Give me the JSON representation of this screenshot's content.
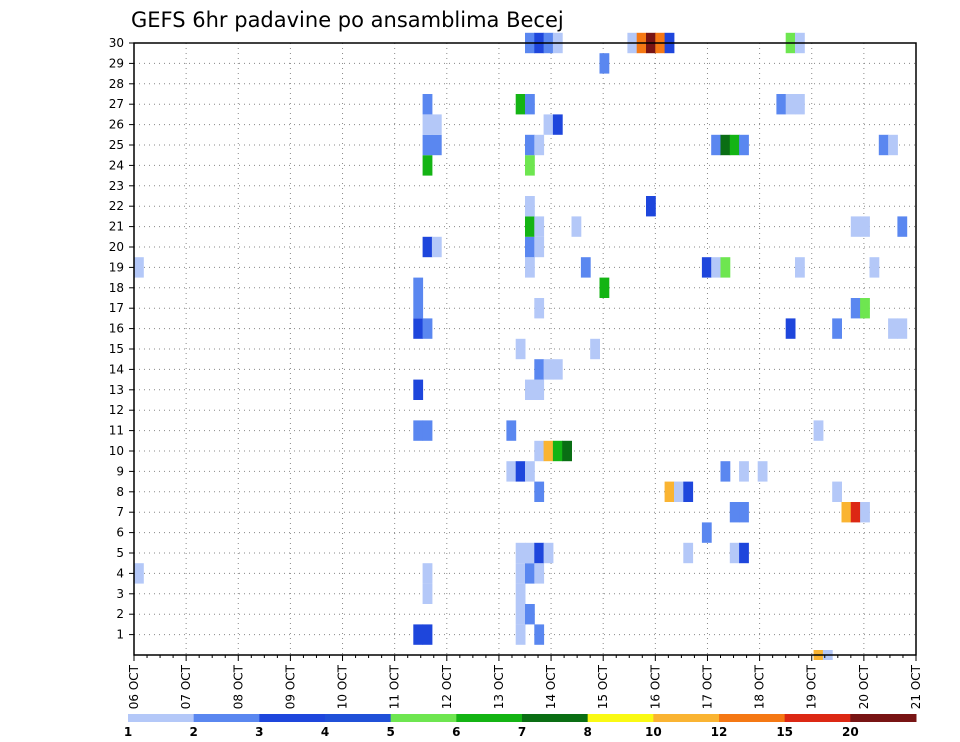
{
  "chart_data": {
    "type": "heatmap",
    "title": "GEFS 6hr padavine po ansamblima Becej",
    "x_tick_labels": [
      "06 OCT",
      "07 OCT",
      "08 OCT",
      "09 OCT",
      "10 OCT",
      "11 OCT",
      "12 OCT",
      "13 OCT",
      "14 OCT",
      "15 OCT",
      "16 OCT",
      "17 OCT",
      "18 OCT",
      "19 OCT",
      "20 OCT",
      "21 OCT"
    ],
    "x_range_days": [
      0,
      15
    ],
    "y_tick_labels": [
      "1",
      "2",
      "3",
      "4",
      "5",
      "6",
      "7",
      "8",
      "9",
      "10",
      "11",
      "12",
      "13",
      "14",
      "15",
      "16",
      "17",
      "18",
      "19",
      "20",
      "21",
      "22",
      "23",
      "24",
      "25",
      "26",
      "27",
      "28",
      "29",
      "30"
    ],
    "y_range": [
      0,
      30
    ],
    "grid": true,
    "legend_position": "bottom",
    "legend": {
      "labels": [
        "1",
        "2",
        "3",
        "4",
        "5",
        "6",
        "7",
        "8",
        "10",
        "12",
        "15",
        "20"
      ],
      "colors": [
        "#b4c8f8",
        "#5a87f0",
        "#1e46dc",
        "#2050d8",
        "#6ee650",
        "#14b414",
        "#0a6e14",
        "#fafa14",
        "#fab432",
        "#f57814",
        "#dc2814",
        "#781414"
      ]
    },
    "cells_note_units": "x = 6-hour step index from 06 OCT 00Z, y = member number, v = precipitation class",
    "cells": [
      {
        "x": 1,
        "y": 4,
        "v": 1
      },
      {
        "x": 1,
        "y": 19,
        "v": 1
      },
      {
        "x": 31,
        "y": 1,
        "v": 3
      },
      {
        "x": 32,
        "y": 1,
        "v": 3
      },
      {
        "x": 31,
        "y": 11,
        "v": 2
      },
      {
        "x": 32,
        "y": 11,
        "v": 2
      },
      {
        "x": 31,
        "y": 13,
        "v": 3
      },
      {
        "x": 31,
        "y": 16,
        "v": 3
      },
      {
        "x": 32,
        "y": 16,
        "v": 2
      },
      {
        "x": 31,
        "y": 17,
        "v": 2
      },
      {
        "x": 31,
        "y": 18,
        "v": 2
      },
      {
        "x": 32,
        "y": 20,
        "v": 3
      },
      {
        "x": 33,
        "y": 20,
        "v": 1
      },
      {
        "x": 32,
        "y": 24,
        "v": 6
      },
      {
        "x": 32,
        "y": 25,
        "v": 2
      },
      {
        "x": 33,
        "y": 25,
        "v": 2
      },
      {
        "x": 32,
        "y": 26,
        "v": 1
      },
      {
        "x": 33,
        "y": 26,
        "v": 1
      },
      {
        "x": 32,
        "y": 27,
        "v": 2
      },
      {
        "x": 32,
        "y": 3,
        "v": 1
      },
      {
        "x": 32,
        "y": 4,
        "v": 1
      },
      {
        "x": 41,
        "y": 9,
        "v": 1
      },
      {
        "x": 41,
        "y": 11,
        "v": 2
      },
      {
        "x": 42,
        "y": 1,
        "v": 1
      },
      {
        "x": 42,
        "y": 2,
        "v": 1
      },
      {
        "x": 42,
        "y": 3,
        "v": 1
      },
      {
        "x": 42,
        "y": 4,
        "v": 1
      },
      {
        "x": 42,
        "y": 5,
        "v": 1
      },
      {
        "x": 42,
        "y": 9,
        "v": 3
      },
      {
        "x": 42,
        "y": 15,
        "v": 1
      },
      {
        "x": 42,
        "y": 27,
        "v": 6
      },
      {
        "x": 43,
        "y": 2,
        "v": 2
      },
      {
        "x": 43,
        "y": 4,
        "v": 2
      },
      {
        "x": 43,
        "y": 5,
        "v": 1
      },
      {
        "x": 43,
        "y": 9,
        "v": 1
      },
      {
        "x": 43,
        "y": 13,
        "v": 1
      },
      {
        "x": 43,
        "y": 19,
        "v": 1
      },
      {
        "x": 43,
        "y": 20,
        "v": 2
      },
      {
        "x": 43,
        "y": 21,
        "v": 6
      },
      {
        "x": 43,
        "y": 22,
        "v": 1
      },
      {
        "x": 43,
        "y": 24,
        "v": 5
      },
      {
        "x": 43,
        "y": 25,
        "v": 2
      },
      {
        "x": 43,
        "y": 27,
        "v": 2
      },
      {
        "x": 43,
        "y": 30,
        "v": 2
      },
      {
        "x": 44,
        "y": 1,
        "v": 2
      },
      {
        "x": 44,
        "y": 4,
        "v": 1
      },
      {
        "x": 44,
        "y": 5,
        "v": 3
      },
      {
        "x": 44,
        "y": 8,
        "v": 2
      },
      {
        "x": 44,
        "y": 10,
        "v": 1
      },
      {
        "x": 44,
        "y": 13,
        "v": 1
      },
      {
        "x": 44,
        "y": 14,
        "v": 2
      },
      {
        "x": 44,
        "y": 17,
        "v": 1
      },
      {
        "x": 44,
        "y": 20,
        "v": 1
      },
      {
        "x": 44,
        "y": 21,
        "v": 1
      },
      {
        "x": 44,
        "y": 25,
        "v": 1
      },
      {
        "x": 44,
        "y": 30,
        "v": 3
      },
      {
        "x": 45,
        "y": 5,
        "v": 1
      },
      {
        "x": 45,
        "y": 10,
        "v": 10
      },
      {
        "x": 45,
        "y": 14,
        "v": 1
      },
      {
        "x": 45,
        "y": 26,
        "v": 1
      },
      {
        "x": 45,
        "y": 30,
        "v": 2
      },
      {
        "x": 46,
        "y": 10,
        "v": 6
      },
      {
        "x": 46,
        "y": 14,
        "v": 1
      },
      {
        "x": 46,
        "y": 26,
        "v": 3
      },
      {
        "x": 46,
        "y": 30,
        "v": 1
      },
      {
        "x": 47,
        "y": 10,
        "v": 7
      },
      {
        "x": 48,
        "y": 21,
        "v": 1
      },
      {
        "x": 49,
        "y": 19,
        "v": 2
      },
      {
        "x": 50,
        "y": 15,
        "v": 1
      },
      {
        "x": 51,
        "y": 18,
        "v": 6
      },
      {
        "x": 51,
        "y": 29,
        "v": 2
      },
      {
        "x": 54,
        "y": 30,
        "v": 1
      },
      {
        "x": 55,
        "y": 30,
        "v": 12
      },
      {
        "x": 56,
        "y": 22,
        "v": 3
      },
      {
        "x": 56,
        "y": 30,
        "v": 20
      },
      {
        "x": 57,
        "y": 30,
        "v": 12
      },
      {
        "x": 58,
        "y": 8,
        "v": 10
      },
      {
        "x": 58,
        "y": 30,
        "v": 3
      },
      {
        "x": 59,
        "y": 8,
        "v": 1
      },
      {
        "x": 60,
        "y": 8,
        "v": 3
      },
      {
        "x": 60,
        "y": 5,
        "v": 1
      },
      {
        "x": 62,
        "y": 6,
        "v": 2
      },
      {
        "x": 62,
        "y": 19,
        "v": 3
      },
      {
        "x": 63,
        "y": 19,
        "v": 1
      },
      {
        "x": 63,
        "y": 25,
        "v": 2
      },
      {
        "x": 64,
        "y": 9,
        "v": 2
      },
      {
        "x": 64,
        "y": 19,
        "v": 5
      },
      {
        "x": 64,
        "y": 25,
        "v": 7
      },
      {
        "x": 65,
        "y": 5,
        "v": 1
      },
      {
        "x": 65,
        "y": 7,
        "v": 2
      },
      {
        "x": 65,
        "y": 25,
        "v": 6
      },
      {
        "x": 66,
        "y": 5,
        "v": 3
      },
      {
        "x": 66,
        "y": 7,
        "v": 2
      },
      {
        "x": 66,
        "y": 9,
        "v": 1
      },
      {
        "x": 66,
        "y": 25,
        "v": 2
      },
      {
        "x": 68,
        "y": 9,
        "v": 1
      },
      {
        "x": 70,
        "y": 27,
        "v": 2
      },
      {
        "x": 71,
        "y": 16,
        "v": 3
      },
      {
        "x": 71,
        "y": 27,
        "v": 1
      },
      {
        "x": 71,
        "y": 30,
        "v": 5
      },
      {
        "x": 72,
        "y": 19,
        "v": 1
      },
      {
        "x": 72,
        "y": 27,
        "v": 1
      },
      {
        "x": 72,
        "y": 30,
        "v": 1
      },
      {
        "x": 74,
        "y": 0,
        "v": 10
      },
      {
        "x": 75,
        "y": 0,
        "v": 1
      },
      {
        "x": 74,
        "y": 11,
        "v": 1
      },
      {
        "x": 76,
        "y": 8,
        "v": 1
      },
      {
        "x": 76,
        "y": 16,
        "v": 2
      },
      {
        "x": 77,
        "y": 7,
        "v": 10
      },
      {
        "x": 78,
        "y": 7,
        "v": 15
      },
      {
        "x": 78,
        "y": 17,
        "v": 2
      },
      {
        "x": 78,
        "y": 21,
        "v": 1
      },
      {
        "x": 79,
        "y": 7,
        "v": 1
      },
      {
        "x": 79,
        "y": 17,
        "v": 5
      },
      {
        "x": 79,
        "y": 21,
        "v": 1
      },
      {
        "x": 80,
        "y": 19,
        "v": 1
      },
      {
        "x": 81,
        "y": 25,
        "v": 2
      },
      {
        "x": 82,
        "y": 16,
        "v": 1
      },
      {
        "x": 82,
        "y": 25,
        "v": 1
      },
      {
        "x": 83,
        "y": 16,
        "v": 1
      },
      {
        "x": 83,
        "y": 21,
        "v": 2
      }
    ]
  }
}
